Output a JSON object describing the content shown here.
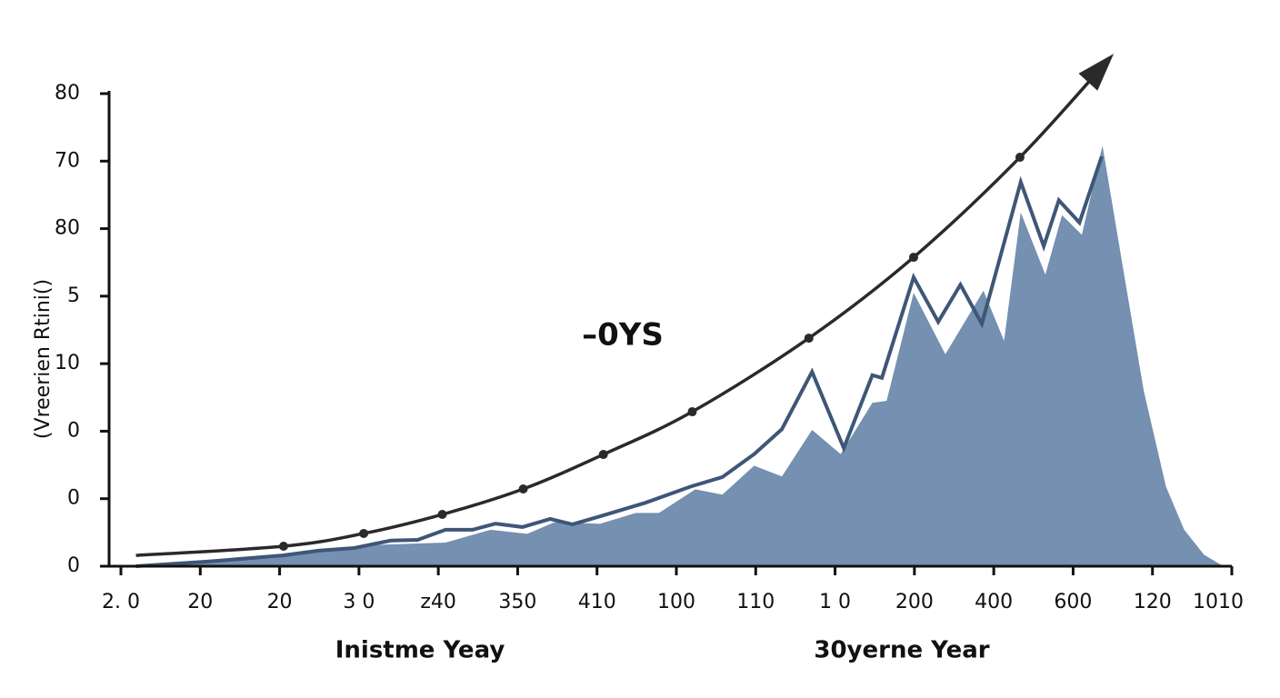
{
  "chart_data": {
    "type": "line",
    "ylabel": "(Vreerien Rtini()",
    "xlabels": [
      "Inistme Yeay",
      "30yerne Year"
    ],
    "annotation": "–0YS",
    "xlim": [
      0,
      14
    ],
    "ylim": [
      0,
      70
    ],
    "xticks": [
      {
        "value": 0,
        "label": "2. 0"
      },
      {
        "value": 1,
        "label": "20"
      },
      {
        "value": 2,
        "label": "20"
      },
      {
        "value": 3,
        "label": "3 0"
      },
      {
        "value": 4,
        "label": "z40"
      },
      {
        "value": 5,
        "label": "350"
      },
      {
        "value": 6,
        "label": "410"
      },
      {
        "value": 7,
        "label": "100"
      },
      {
        "value": 8,
        "label": "110"
      },
      {
        "value": 9,
        "label": "1 0"
      },
      {
        "value": 10,
        "label": "200"
      },
      {
        "value": 11,
        "label": "400"
      },
      {
        "value": 12,
        "label": "600"
      },
      {
        "value": 13,
        "label": "120"
      },
      {
        "value": 14,
        "label": "1010"
      }
    ],
    "yticks": [
      0,
      {
        "value": 10,
        "label": "0"
      },
      {
        "value": 20,
        "label": "0"
      },
      {
        "value": 30,
        "label": "10"
      },
      {
        "value": 40,
        "label": "5"
      },
      {
        "value": 50,
        "label": "80"
      },
      {
        "value": 60,
        "label": "70"
      },
      {
        "value": 70,
        "label": "80"
      }
    ],
    "series": [
      {
        "type": "area",
        "color": "#7590b0",
        "x": [
          0.19,
          1.91,
          3.06,
          4.09,
          4.66,
          5.12,
          5.46,
          6.04,
          6.49,
          6.78,
          7.24,
          7.58,
          7.98,
          8.33,
          8.71,
          9.07,
          9.47,
          9.65,
          9.99,
          10.39,
          10.87,
          11.13,
          11.34,
          11.65,
          11.86,
          12.11,
          12.37,
          12.62,
          12.89,
          13.17,
          13.4,
          13.65,
          13.88
        ],
        "values": [
          0,
          1.2,
          3.1,
          3.5,
          5.4,
          4.8,
          6.5,
          6.3,
          7.9,
          7.9,
          11.4,
          10.6,
          14.9,
          13.3,
          20.2,
          16.6,
          24.2,
          24.5,
          40.5,
          31.4,
          40.8,
          33.4,
          52.4,
          43.2,
          52.0,
          49.1,
          62.3,
          44.8,
          26.0,
          11.8,
          5.4,
          1.7,
          0.1
        ]
      },
      {
        "type": "line",
        "color": "#3e5677",
        "x": [
          0.19,
          1.11,
          2.04,
          2.49,
          2.94,
          3.4,
          3.74,
          4.09,
          4.43,
          4.72,
          5.06,
          5.41,
          5.69,
          6.04,
          6.61,
          7.18,
          7.58,
          7.98,
          8.33,
          8.71,
          9.11,
          9.47,
          9.59,
          9.99,
          10.3,
          10.58,
          10.85,
          11.34,
          11.63,
          11.82,
          12.08,
          12.36
        ],
        "values": [
          0,
          0.7,
          1.6,
          2.3,
          2.7,
          3.8,
          3.9,
          5.4,
          5.4,
          6.3,
          5.8,
          7.0,
          6.2,
          7.4,
          9.4,
          11.8,
          13.2,
          16.6,
          20.3,
          28.8,
          17.5,
          28.3,
          27.9,
          42.8,
          36.2,
          41.7,
          35.9,
          56.9,
          47.4,
          54.2,
          50.9,
          60.7
        ]
      },
      {
        "type": "curve",
        "color": "#2a2a2a",
        "x": [
          0.19,
          2.05,
          3.06,
          4.05,
          5.07,
          6.08,
          7.2,
          8.67,
          9.99,
          11.33,
          12.45
        ],
        "values": [
          1.6,
          2.96,
          4.85,
          7.67,
          11.44,
          16.55,
          22.88,
          33.78,
          45.76,
          60.57,
          75.1
        ]
      }
    ]
  }
}
